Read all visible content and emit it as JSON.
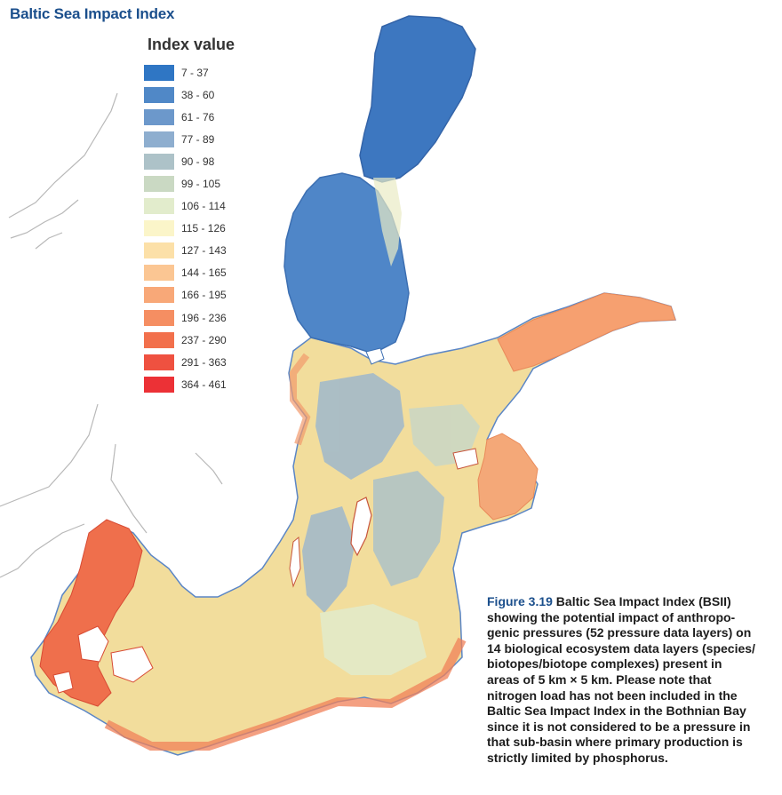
{
  "title": "Baltic Sea Impact Index",
  "legend": {
    "title": "Index value",
    "items": [
      {
        "label": "7 - 37",
        "color": "#2f76c4"
      },
      {
        "label": "38 - 60",
        "color": "#5088c7"
      },
      {
        "label": "61 - 76",
        "color": "#6c98cb"
      },
      {
        "label": "77 - 89",
        "color": "#8eaecf"
      },
      {
        "label": "90 - 98",
        "color": "#adc2c8"
      },
      {
        "label": "99 - 105",
        "color": "#cad9c3"
      },
      {
        "label": "106 - 114",
        "color": "#e2eccc"
      },
      {
        "label": "115 - 126",
        "color": "#fbf5c9"
      },
      {
        "label": "127 - 143",
        "color": "#fce0a8"
      },
      {
        "label": "144 - 165",
        "color": "#fbc693"
      },
      {
        "label": "166 - 195",
        "color": "#f8a878"
      },
      {
        "label": "196 - 236",
        "color": "#f58e62"
      },
      {
        "label": "237 - 290",
        "color": "#f2704c"
      },
      {
        "label": "291 - 363",
        "color": "#ef5140"
      },
      {
        "label": "364 - 461",
        "color": "#ec3136"
      }
    ]
  },
  "caption": {
    "figure_label": "Figure 3.19",
    "lines": [
      " Baltic Sea Impact Index (BSII)",
      "showing the potential impact of anthropo-",
      "genic pressures (52 pressure data layers) on",
      "14 biological ecosystem data layers (species/",
      "biotopes/biotope complexes) present in",
      "areas of 5 km × 5 km. Please note that",
      "nitrogen load has not been included in the",
      "Baltic Sea Impact Index in the Bothnian Bay",
      "since it is not considered to be a pressure in",
      "that sub-basin where primary production is",
      "strictly limited by phosphorus."
    ]
  },
  "colors": {
    "title": "#1b4f8c",
    "coast": "#b8b8b8",
    "sea_blue_dark": "#3d77c0",
    "sea_blue_mid": "#5d8fcc",
    "sea_pale": "#f4ecb8",
    "sea_orange": "#f6a070",
    "sea_red": "#ee5a40"
  }
}
